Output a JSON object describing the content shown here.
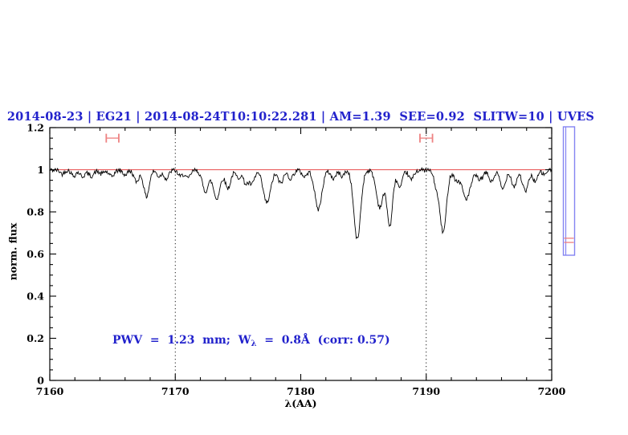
{
  "header": {
    "title": "2014-08-23 | EG21 | 2014-08-24T10:10:22.281 | AM=1.39  SEE=0.92  SLITW=10 | UVES",
    "color": "#2222cc"
  },
  "annotation": {
    "prefix": "PWV  =  1.23  mm;  W",
    "sub": "λ",
    "suffix": "  =  0.8Å  (corr: 0.57)",
    "color": "#2222cc"
  },
  "chart_data": {
    "type": "line",
    "title": "2014-08-23 | EG21 | 2014-08-24T10:10:22.281 | AM=1.39  SEE=0.92  SLITW=10 | UVES",
    "xlabel": "λ(AA)",
    "ylabel": "norm. flux",
    "xlim": [
      7160,
      7200
    ],
    "ylim": [
      0,
      1.2
    ],
    "x_major_ticks": [
      7160,
      7170,
      7180,
      7190,
      7200
    ],
    "x_minor_step": 2,
    "y_major_ticks": [
      0,
      0.2,
      0.4,
      0.6,
      0.8,
      1,
      1.2
    ],
    "y_minor_step": 0.05,
    "grid": false,
    "frame": "box-with-inward-ticks",
    "spectrum_color": "#000000",
    "continuum": {
      "level": 1.0,
      "color": "#e85050"
    },
    "dotted_guides_x": [
      7170,
      7190
    ],
    "guide_color": "#000000",
    "continuum_baseline": 0.998,
    "noise": {
      "amplitude": 0.011,
      "seed": 42,
      "step_A": 0.055
    },
    "absorption_lines": [
      [
        7161.0,
        0.018,
        0.15
      ],
      [
        7161.9,
        0.027,
        0.18
      ],
      [
        7162.6,
        0.03,
        0.2
      ],
      [
        7163.3,
        0.028,
        0.22
      ],
      [
        7164.1,
        0.018,
        0.18
      ],
      [
        7164.9,
        0.03,
        0.22
      ],
      [
        7166.0,
        0.022,
        0.18
      ],
      [
        7166.9,
        0.055,
        0.2
      ],
      [
        7167.7,
        0.125,
        0.22
      ],
      [
        7168.7,
        0.03,
        0.18
      ],
      [
        7169.3,
        0.042,
        0.18
      ],
      [
        7170.4,
        0.03,
        0.18
      ],
      [
        7171.0,
        0.04,
        0.2
      ],
      [
        7172.4,
        0.1,
        0.25
      ],
      [
        7173.3,
        0.135,
        0.27
      ],
      [
        7174.2,
        0.085,
        0.22
      ],
      [
        7175.0,
        0.035,
        0.18
      ],
      [
        7175.6,
        0.06,
        0.2
      ],
      [
        7176.1,
        0.065,
        0.22
      ],
      [
        7177.3,
        0.155,
        0.3
      ],
      [
        7178.4,
        0.062,
        0.22
      ],
      [
        7179.2,
        0.04,
        0.2
      ],
      [
        7180.3,
        0.03,
        0.2
      ],
      [
        7181.4,
        0.185,
        0.28
      ],
      [
        7182.6,
        0.04,
        0.2
      ],
      [
        7183.3,
        0.028,
        0.18
      ],
      [
        7184.5,
        0.33,
        0.27
      ],
      [
        7186.3,
        0.175,
        0.28
      ],
      [
        7187.1,
        0.265,
        0.22
      ],
      [
        7187.9,
        0.085,
        0.2
      ],
      [
        7188.8,
        0.045,
        0.2
      ],
      [
        7190.8,
        0.065,
        0.2
      ],
      [
        7191.35,
        0.295,
        0.26
      ],
      [
        7192.4,
        0.045,
        0.2
      ],
      [
        7193.2,
        0.135,
        0.33
      ],
      [
        7194.3,
        0.045,
        0.25
      ],
      [
        7195.2,
        0.055,
        0.2
      ],
      [
        7196.1,
        0.09,
        0.22
      ],
      [
        7197.0,
        0.078,
        0.2
      ],
      [
        7197.9,
        0.1,
        0.24
      ],
      [
        7198.7,
        0.052,
        0.2
      ],
      [
        7199.4,
        0.022,
        0.15
      ]
    ],
    "range_markers": [
      {
        "x_center": 7165,
        "half_width_A": 0.5,
        "flux": 1.15
      },
      {
        "x_center": 7190,
        "half_width_A": 0.5,
        "flux": 1.15
      }
    ],
    "marker_color": "#ee8282",
    "side_bar": {
      "border_color": "#8484f2",
      "red_line_color": "#f08080",
      "red_line_fluxes": [
        0.675,
        0.655
      ]
    }
  }
}
